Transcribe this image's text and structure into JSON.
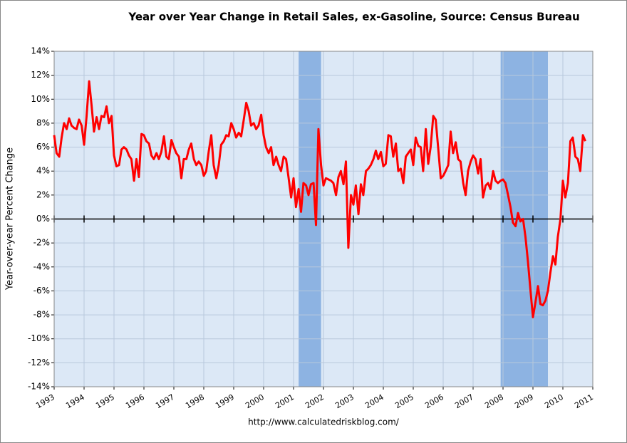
{
  "chart_data": {
    "type": "line",
    "title": "Year over Year Change in Retail Sales, ex-Gasoline, Source: Census Bureau",
    "ylabel": "Year-over-year Percent Change",
    "source": "http://www.calculatedriskblog.com/",
    "xlim": [
      1993,
      2011
    ],
    "xticks": [
      1993,
      1994,
      1995,
      1996,
      1997,
      1998,
      1999,
      2000,
      2001,
      2002,
      2003,
      2004,
      2005,
      2006,
      2007,
      2008,
      2009,
      2010,
      2011
    ],
    "ylim": [
      -14,
      14
    ],
    "yticks": [
      {
        "value": -14,
        "label": "-14%"
      },
      {
        "value": -12,
        "label": "-12%"
      },
      {
        "value": -10,
        "label": "-10%"
      },
      {
        "value": -8,
        "label": "-8%"
      },
      {
        "value": -6,
        "label": "-6%"
      },
      {
        "value": -4,
        "label": "-4%"
      },
      {
        "value": -2,
        "label": "-2%"
      },
      {
        "value": 0,
        "label": "0%"
      },
      {
        "value": 2,
        "label": "2%"
      },
      {
        "value": 4,
        "label": "4%"
      },
      {
        "value": 6,
        "label": "6%"
      },
      {
        "value": 8,
        "label": "8%"
      },
      {
        "value": 10,
        "label": "10%"
      },
      {
        "value": 12,
        "label": "12%"
      },
      {
        "value": 14,
        "label": "14%"
      }
    ],
    "grid": true,
    "shaded_periods": [
      [
        2001.17,
        2001.92
      ],
      [
        2007.92,
        2009.5
      ]
    ],
    "shade_color": "#8db3e2",
    "x": [
      1993.0,
      1993.08,
      1993.17,
      1993.25,
      1993.33,
      1993.42,
      1993.5,
      1993.58,
      1993.67,
      1993.75,
      1993.83,
      1993.92,
      1994.0,
      1994.08,
      1994.17,
      1994.25,
      1994.33,
      1994.42,
      1994.5,
      1994.58,
      1994.67,
      1994.75,
      1994.83,
      1994.92,
      1995.0,
      1995.08,
      1995.17,
      1995.25,
      1995.33,
      1995.42,
      1995.5,
      1995.58,
      1995.67,
      1995.75,
      1995.83,
      1995.92,
      1996.0,
      1996.08,
      1996.17,
      1996.25,
      1996.33,
      1996.42,
      1996.5,
      1996.58,
      1996.67,
      1996.75,
      1996.83,
      1996.92,
      1997.0,
      1997.08,
      1997.17,
      1997.25,
      1997.33,
      1997.42,
      1997.5,
      1997.58,
      1997.67,
      1997.75,
      1997.83,
      1997.92,
      1998.0,
      1998.08,
      1998.17,
      1998.25,
      1998.33,
      1998.42,
      1998.5,
      1998.58,
      1998.67,
      1998.75,
      1998.83,
      1998.92,
      1999.0,
      1999.08,
      1999.17,
      1999.25,
      1999.33,
      1999.42,
      1999.5,
      1999.58,
      1999.67,
      1999.75,
      1999.83,
      1999.92,
      2000.0,
      2000.08,
      2000.17,
      2000.25,
      2000.33,
      2000.42,
      2000.5,
      2000.58,
      2000.67,
      2000.75,
      2000.83,
      2000.92,
      2001.0,
      2001.08,
      2001.17,
      2001.25,
      2001.33,
      2001.42,
      2001.5,
      2001.58,
      2001.67,
      2001.75,
      2001.83,
      2001.92,
      2002.0,
      2002.08,
      2002.17,
      2002.25,
      2002.33,
      2002.42,
      2002.5,
      2002.58,
      2002.67,
      2002.75,
      2002.83,
      2002.92,
      2003.0,
      2003.08,
      2003.17,
      2003.25,
      2003.33,
      2003.42,
      2003.5,
      2003.58,
      2003.67,
      2003.75,
      2003.83,
      2003.92,
      2004.0,
      2004.08,
      2004.17,
      2004.25,
      2004.33,
      2004.42,
      2004.5,
      2004.58,
      2004.67,
      2004.75,
      2004.83,
      2004.92,
      2005.0,
      2005.08,
      2005.17,
      2005.25,
      2005.33,
      2005.42,
      2005.5,
      2005.58,
      2005.67,
      2005.75,
      2005.83,
      2005.92,
      2006.0,
      2006.08,
      2006.17,
      2006.25,
      2006.33,
      2006.42,
      2006.5,
      2006.58,
      2006.67,
      2006.75,
      2006.83,
      2006.92,
      2007.0,
      2007.08,
      2007.17,
      2007.25,
      2007.33,
      2007.42,
      2007.5,
      2007.58,
      2007.67,
      2007.75,
      2007.83,
      2007.92,
      2008.0,
      2008.08,
      2008.17,
      2008.25,
      2008.33,
      2008.42,
      2008.5,
      2008.58,
      2008.67,
      2008.75,
      2008.83,
      2008.92,
      2009.0,
      2009.08,
      2009.17,
      2009.25,
      2009.33,
      2009.42,
      2009.5,
      2009.58,
      2009.67,
      2009.75,
      2009.83,
      2009.92,
      2010.0,
      2010.08,
      2010.17,
      2010.25,
      2010.33,
      2010.42,
      2010.5,
      2010.58,
      2010.67,
      2010.75
    ],
    "series": [
      {
        "name": "Retail Sales ex-Gasoline YoY",
        "color": "#ff0000",
        "values": [
          7.0,
          5.5,
          5.2,
          6.8,
          8.0,
          7.5,
          8.4,
          7.8,
          7.6,
          7.5,
          8.3,
          7.8,
          6.2,
          8.5,
          11.5,
          9.5,
          7.3,
          8.5,
          7.5,
          8.6,
          8.5,
          9.4,
          8.0,
          8.6,
          5.3,
          4.4,
          4.5,
          5.8,
          6.0,
          5.8,
          5.3,
          5.0,
          3.2,
          5.0,
          3.5,
          7.1,
          7.0,
          6.5,
          6.3,
          5.3,
          5.0,
          5.5,
          5.0,
          5.6,
          6.9,
          5.2,
          5.0,
          6.6,
          6.0,
          5.5,
          5.2,
          3.4,
          5.0,
          5.0,
          5.8,
          6.3,
          5.0,
          4.5,
          4.8,
          4.5,
          3.6,
          4.0,
          5.7,
          7.0,
          4.5,
          3.4,
          4.5,
          6.2,
          6.5,
          7.0,
          6.9,
          8.0,
          7.5,
          6.8,
          7.2,
          6.9,
          8.2,
          9.7,
          9.0,
          7.8,
          8.0,
          7.5,
          7.8,
          8.7,
          7.0,
          6.0,
          5.5,
          6.0,
          4.5,
          5.2,
          4.5,
          4.0,
          5.2,
          5.0,
          3.5,
          1.8,
          3.4,
          1.0,
          2.5,
          0.6,
          3.0,
          2.8,
          2.0,
          2.9,
          3.0,
          -0.5,
          7.5,
          4.5,
          2.8,
          3.4,
          3.3,
          3.2,
          3.0,
          2.0,
          3.5,
          4.0,
          2.9,
          4.8,
          -2.4,
          2.0,
          1.2,
          2.8,
          0.4,
          2.9,
          2.0,
          4.0,
          4.2,
          4.5,
          5.0,
          5.7,
          5.0,
          5.6,
          4.4,
          4.6,
          7.0,
          6.9,
          5.2,
          6.3,
          4.0,
          4.2,
          3.0,
          5.2,
          5.5,
          5.8,
          4.5,
          6.8,
          6.1,
          6.0,
          4.0,
          7.5,
          4.6,
          6.0,
          8.6,
          8.3,
          6.0,
          3.4,
          3.6,
          4.0,
          4.5,
          7.3,
          5.5,
          6.4,
          5.0,
          4.8,
          3.0,
          2.0,
          4.0,
          4.8,
          5.3,
          5.0,
          3.8,
          5.0,
          1.8,
          2.8,
          3.0,
          2.5,
          4.0,
          3.2,
          3.0,
          3.2,
          3.3,
          3.0,
          2.0,
          1.0,
          -0.3,
          -0.6,
          0.5,
          -0.2,
          0.0,
          -1.5,
          -3.5,
          -6.0,
          -8.2,
          -7.0,
          -5.6,
          -7.1,
          -7.2,
          -6.8,
          -6.0,
          -4.5,
          -3.1,
          -3.8,
          -1.5,
          0.0,
          3.2,
          1.8,
          3.0,
          6.5,
          6.8,
          5.2,
          5.0,
          4.0,
          7.0,
          6.5
        ]
      }
    ]
  }
}
